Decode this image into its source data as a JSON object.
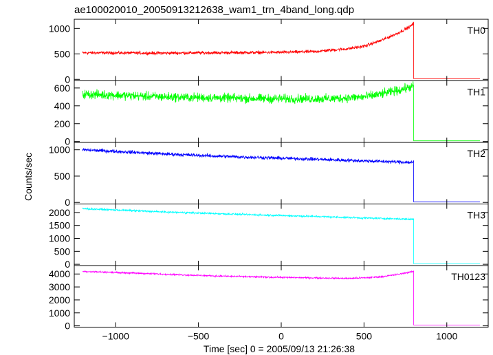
{
  "chart_data": {
    "type": "line",
    "title": "ae100020010_20050913212638_wam1_trn_4band_long.qdp",
    "xlabel": "Time [sec] 0 = 2005/09/13 21:26:38",
    "ylabel": "Counts/sec",
    "xlim": [
      -1250,
      1250
    ],
    "xticks": [
      -1000,
      -500,
      0,
      500,
      1000
    ],
    "xtick_labels": [
      "−1000",
      "−500",
      "0",
      "500",
      "1000"
    ],
    "panels": [
      {
        "label": "TH0",
        "color": "#ff0000",
        "ylim": [
          -30,
          1180
        ],
        "yticks": [
          0,
          500,
          1000
        ],
        "ytick_labels": [
          "0",
          "500",
          "1000"
        ],
        "shape": [
          [
            -1200,
            520
          ],
          [
            -1000,
            520
          ],
          [
            -800,
            515
          ],
          [
            -500,
            520
          ],
          [
            -200,
            525
          ],
          [
            0,
            530
          ],
          [
            200,
            545
          ],
          [
            400,
            600
          ],
          [
            500,
            650
          ],
          [
            600,
            760
          ],
          [
            700,
            900
          ],
          [
            780,
            1040
          ],
          [
            800,
            1100
          ]
        ],
        "noise": 28,
        "drop_x": 800,
        "after_value": 12
      },
      {
        "label": "TH1",
        "color": "#00ff00",
        "ylim": [
          -10,
          680
        ],
        "yticks": [
          0,
          200,
          400,
          600
        ],
        "ytick_labels": [
          "0",
          "200",
          "400",
          "600"
        ],
        "shape": [
          [
            -1200,
            530
          ],
          [
            -1000,
            520
          ],
          [
            -700,
            500
          ],
          [
            -400,
            490
          ],
          [
            -100,
            480
          ],
          [
            100,
            480
          ],
          [
            300,
            480
          ],
          [
            500,
            500
          ],
          [
            600,
            530
          ],
          [
            700,
            570
          ],
          [
            800,
            620
          ]
        ],
        "noise": 45,
        "drop_x": 800,
        "after_value": 8
      },
      {
        "label": "TH2",
        "color": "#0000ff",
        "ylim": [
          -30,
          1140
        ],
        "yticks": [
          0,
          500,
          1000
        ],
        "ytick_labels": [
          "0",
          "500",
          "1000"
        ],
        "shape": [
          [
            -1200,
            1000
          ],
          [
            -1000,
            970
          ],
          [
            -700,
            920
          ],
          [
            -400,
            880
          ],
          [
            -100,
            850
          ],
          [
            200,
            820
          ],
          [
            500,
            790
          ],
          [
            800,
            760
          ]
        ],
        "noise": 30,
        "drop_x": 800,
        "after_value": 10
      },
      {
        "label": "TH3",
        "color": "#00ffff",
        "ylim": [
          -50,
          2330
        ],
        "yticks": [
          0,
          500,
          1000,
          1500,
          2000
        ],
        "ytick_labels": [
          "0",
          "500",
          "1000",
          "1500",
          "2000"
        ],
        "shape": [
          [
            -1200,
            2150
          ],
          [
            -1000,
            2100
          ],
          [
            -700,
            2020
          ],
          [
            -400,
            1960
          ],
          [
            -100,
            1900
          ],
          [
            200,
            1850
          ],
          [
            500,
            1790
          ],
          [
            800,
            1740
          ]
        ],
        "noise": 32,
        "drop_x": 800,
        "after_value": 20
      },
      {
        "label": "TH0123",
        "color": "#ff00ff",
        "ylim": [
          -100,
          4650
        ],
        "yticks": [
          0,
          1000,
          2000,
          3000,
          4000
        ],
        "ytick_labels": [
          "0",
          "1000",
          "2000",
          "3000",
          "4000"
        ],
        "shape": [
          [
            -1200,
            4200
          ],
          [
            -1000,
            4120
          ],
          [
            -700,
            3980
          ],
          [
            -400,
            3850
          ],
          [
            -100,
            3760
          ],
          [
            200,
            3700
          ],
          [
            400,
            3660
          ],
          [
            500,
            3700
          ],
          [
            600,
            3780
          ],
          [
            700,
            3960
          ],
          [
            800,
            4200
          ]
        ],
        "noise": 55,
        "drop_x": 800,
        "after_value": 60
      }
    ],
    "grid": false,
    "legend": "none"
  }
}
